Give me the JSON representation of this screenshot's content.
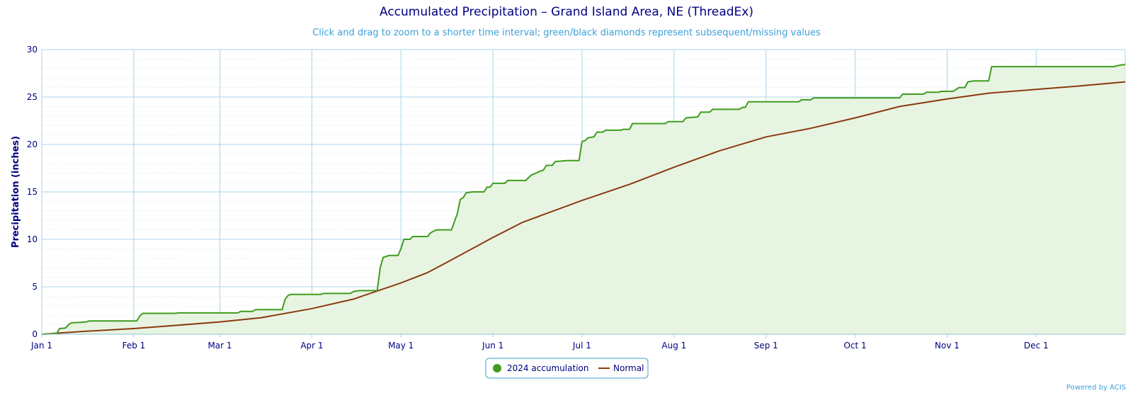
{
  "chart_data": {
    "type": "area",
    "title": "Accumulated Precipitation – Grand Island Area, NE (ThreadEx)",
    "subtitle": "Click and drag to zoom to a shorter time interval; green/black diamonds represent subsequent/missing values",
    "ylabel": "Precipitation (inches)",
    "xlabel": "",
    "ylim": [
      0,
      30
    ],
    "yticks": [
      0,
      5,
      10,
      15,
      20,
      25,
      30
    ],
    "xlim_day": [
      1,
      366
    ],
    "xticks": [
      {
        "day": 1,
        "label": "Jan 1"
      },
      {
        "day": 32,
        "label": "Feb 1"
      },
      {
        "day": 61,
        "label": "Mar 1"
      },
      {
        "day": 92,
        "label": "Apr 1"
      },
      {
        "day": 122,
        "label": "May 1"
      },
      {
        "day": 153,
        "label": "Jun 1"
      },
      {
        "day": 183,
        "label": "Jul 1"
      },
      {
        "day": 214,
        "label": "Aug 1"
      },
      {
        "day": 245,
        "label": "Sep 1"
      },
      {
        "day": 275,
        "label": "Oct 1"
      },
      {
        "day": 306,
        "label": "Nov 1"
      },
      {
        "day": 336,
        "label": "Dec 1"
      }
    ],
    "grid": true,
    "legend_position": "bottom-center",
    "credit": "Powered by ACIS",
    "colors": {
      "accumulation": "#3f9c1e",
      "accumulation_fill": "#e8f4e2",
      "normal": "#8b3a0f",
      "grid": "#a9d4e9",
      "axis": "#000080"
    },
    "series": [
      {
        "name": "2024 accumulation",
        "points": [
          [
            1,
            0
          ],
          [
            6,
            0.05
          ],
          [
            7,
            0.6
          ],
          [
            9,
            0.65
          ],
          [
            10,
            1.0
          ],
          [
            11,
            1.2
          ],
          [
            14,
            1.25
          ],
          [
            16,
            1.3
          ],
          [
            17,
            1.4
          ],
          [
            33,
            1.4
          ],
          [
            34,
            1.9
          ],
          [
            35,
            2.2
          ],
          [
            46,
            2.2
          ],
          [
            47,
            2.25
          ],
          [
            67,
            2.25
          ],
          [
            68,
            2.4
          ],
          [
            72,
            2.4
          ],
          [
            73,
            2.6
          ],
          [
            82,
            2.6
          ],
          [
            83,
            3.7
          ],
          [
            84,
            4.1
          ],
          [
            85,
            4.2
          ],
          [
            95,
            4.2
          ],
          [
            96,
            4.3
          ],
          [
            105,
            4.3
          ],
          [
            106,
            4.5
          ],
          [
            108,
            4.6
          ],
          [
            114,
            4.6
          ],
          [
            115,
            7.0
          ],
          [
            116,
            8.1
          ],
          [
            118,
            8.3
          ],
          [
            121,
            8.3
          ],
          [
            122,
            9.0
          ],
          [
            123,
            10.0
          ],
          [
            125,
            10.0
          ],
          [
            126,
            10.3
          ],
          [
            131,
            10.3
          ],
          [
            132,
            10.7
          ],
          [
            134,
            11.0
          ],
          [
            139,
            11.0
          ],
          [
            141,
            12.7
          ],
          [
            142,
            14.2
          ],
          [
            143,
            14.4
          ],
          [
            144,
            14.9
          ],
          [
            146,
            15.0
          ],
          [
            150,
            15.0
          ],
          [
            151,
            15.5
          ],
          [
            152,
            15.5
          ],
          [
            153,
            15.9
          ],
          [
            157,
            15.9
          ],
          [
            158,
            16.2
          ],
          [
            164,
            16.2
          ],
          [
            165,
            16.5
          ],
          [
            166,
            16.8
          ],
          [
            167,
            16.9
          ],
          [
            169,
            17.2
          ],
          [
            170,
            17.3
          ],
          [
            171,
            17.8
          ],
          [
            173,
            17.8
          ],
          [
            174,
            18.2
          ],
          [
            178,
            18.3
          ],
          [
            182,
            18.3
          ],
          [
            183,
            20.3
          ],
          [
            184,
            20.4
          ],
          [
            185,
            20.7
          ],
          [
            187,
            20.8
          ],
          [
            188,
            21.3
          ],
          [
            190,
            21.3
          ],
          [
            191,
            21.5
          ],
          [
            196,
            21.5
          ],
          [
            197,
            21.6
          ],
          [
            199,
            21.6
          ],
          [
            200,
            22.2
          ],
          [
            211,
            22.2
          ],
          [
            212,
            22.4
          ],
          [
            217,
            22.4
          ],
          [
            218,
            22.8
          ],
          [
            222,
            22.9
          ],
          [
            223,
            23.4
          ],
          [
            226,
            23.4
          ],
          [
            227,
            23.7
          ],
          [
            236,
            23.7
          ],
          [
            237,
            23.9
          ],
          [
            238,
            23.9
          ],
          [
            239,
            24.5
          ],
          [
            256,
            24.5
          ],
          [
            257,
            24.7
          ],
          [
            260,
            24.7
          ],
          [
            261,
            24.9
          ],
          [
            290,
            24.9
          ],
          [
            291,
            25.3
          ],
          [
            298,
            25.3
          ],
          [
            299,
            25.5
          ],
          [
            303,
            25.5
          ],
          [
            304,
            25.6
          ],
          [
            308,
            25.6
          ],
          [
            309,
            25.8
          ],
          [
            310,
            26.0
          ],
          [
            312,
            26.0
          ],
          [
            313,
            26.6
          ],
          [
            315,
            26.7
          ],
          [
            320,
            26.7
          ],
          [
            321,
            28.2
          ],
          [
            362,
            28.2
          ],
          [
            365,
            28.4
          ],
          [
            366,
            28.4
          ]
        ]
      },
      {
        "name": "Normal",
        "points": [
          [
            1,
            0
          ],
          [
            15,
            0.3
          ],
          [
            32,
            0.6
          ],
          [
            45,
            0.9
          ],
          [
            61,
            1.3
          ],
          [
            75,
            1.75
          ],
          [
            92,
            2.7
          ],
          [
            106,
            3.7
          ],
          [
            122,
            5.4
          ],
          [
            131,
            6.5
          ],
          [
            140,
            8.0
          ],
          [
            153,
            10.2
          ],
          [
            163,
            11.8
          ],
          [
            183,
            14.1
          ],
          [
            199,
            15.8
          ],
          [
            214,
            17.6
          ],
          [
            229,
            19.3
          ],
          [
            245,
            20.8
          ],
          [
            260,
            21.7
          ],
          [
            275,
            22.8
          ],
          [
            290,
            24.0
          ],
          [
            306,
            24.8
          ],
          [
            320,
            25.4
          ],
          [
            336,
            25.8
          ],
          [
            352,
            26.2
          ],
          [
            366,
            26.6
          ]
        ]
      }
    ]
  }
}
